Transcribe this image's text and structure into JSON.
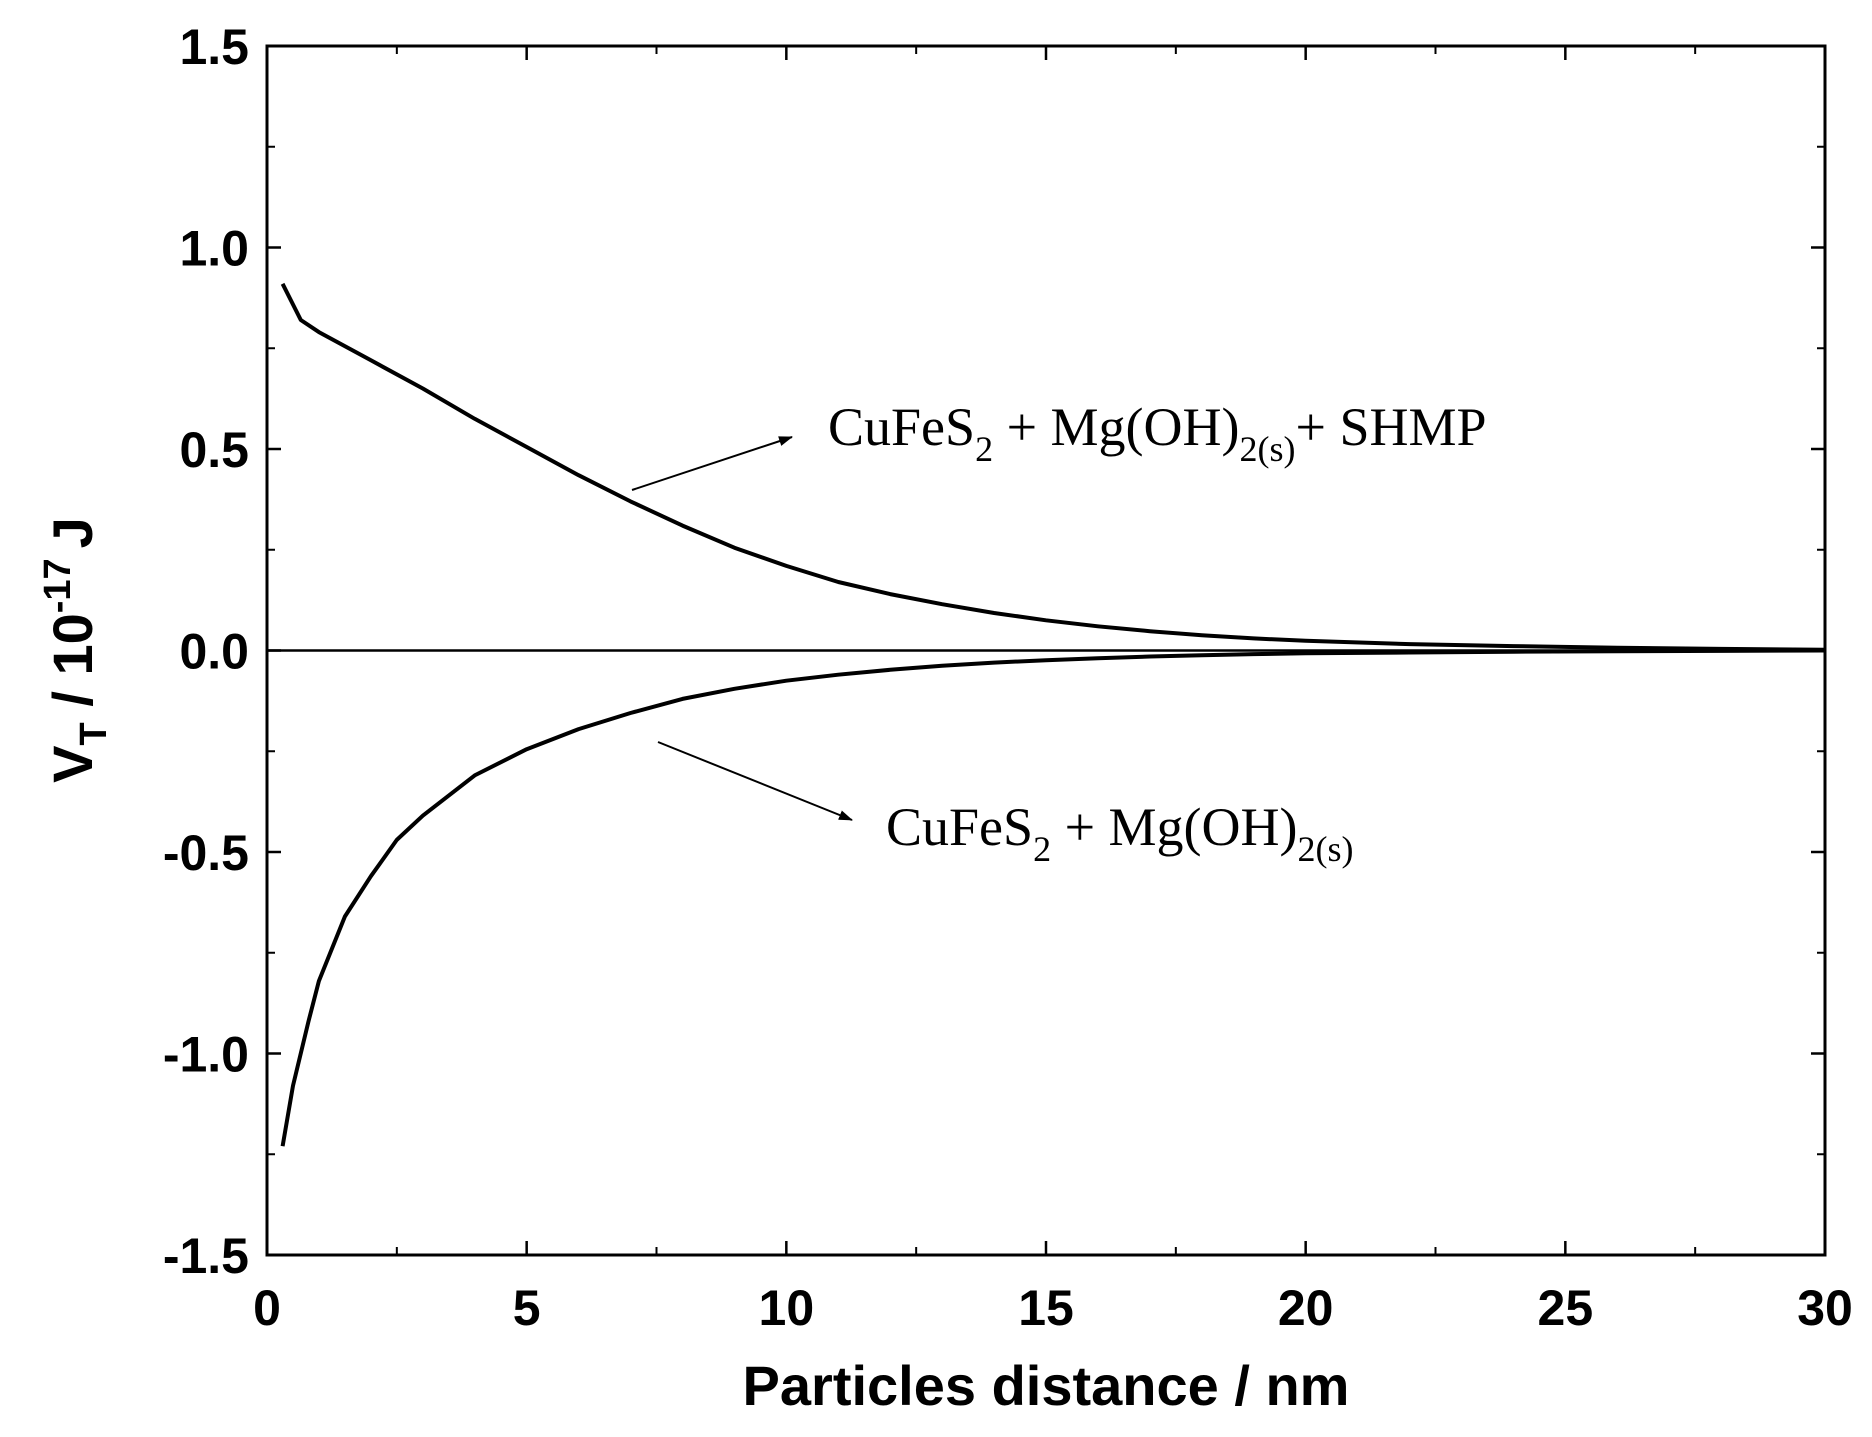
{
  "chart_data": {
    "type": "line",
    "xlabel": "Particles distance / nm",
    "ylabel": {
      "base": "V",
      "sub": "T",
      "mid": " / 10",
      "sup": "-17",
      "end": "J"
    },
    "xlim": [
      0,
      30
    ],
    "ylim": [
      -1.5,
      1.5
    ],
    "x_ticks": [
      "0",
      "5",
      "10",
      "15",
      "20",
      "25",
      "30"
    ],
    "y_ticks": [
      "-1.5",
      "-1.0",
      "-0.5",
      "0.0",
      "0.5",
      "1.0",
      "1.5"
    ],
    "grid": false,
    "zero_line": true,
    "series": [
      {
        "x": [
          0.3,
          0.65,
          1,
          2,
          3,
          4,
          5,
          6,
          7,
          8,
          9,
          10,
          11,
          12,
          13,
          14,
          15,
          16,
          17,
          18,
          19,
          20,
          22,
          24,
          26,
          28,
          30
        ],
        "y": [
          0.91,
          0.82,
          0.79,
          0.72,
          0.65,
          0.575,
          0.505,
          0.435,
          0.37,
          0.31,
          0.255,
          0.21,
          0.17,
          0.14,
          0.115,
          0.093,
          0.075,
          0.06,
          0.048,
          0.038,
          0.03,
          0.024,
          0.016,
          0.011,
          0.007,
          0.004,
          0.002
        ]
      },
      {
        "x": [
          0.3,
          0.5,
          0.8,
          1,
          1.5,
          2,
          2.5,
          3,
          4,
          5,
          6,
          7,
          8,
          9,
          10,
          11,
          12,
          13,
          14,
          15,
          16,
          17,
          18,
          19,
          20,
          22,
          24,
          26,
          28,
          30
        ],
        "y": [
          -1.23,
          -1.08,
          -0.92,
          -0.82,
          -0.66,
          -0.56,
          -0.47,
          -0.41,
          -0.31,
          -0.245,
          -0.195,
          -0.155,
          -0.12,
          -0.095,
          -0.075,
          -0.06,
          -0.048,
          -0.038,
          -0.03,
          -0.024,
          -0.019,
          -0.015,
          -0.012,
          -0.009,
          -0.007,
          -0.005,
          -0.003,
          -0.002,
          -0.001,
          0.0
        ]
      }
    ],
    "annotations": [
      {
        "parts": [
          {
            "t": "CuFeS",
            "s": ""
          },
          {
            "t": "2",
            "s": "sub"
          },
          {
            "t": " + Mg(OH)",
            "s": ""
          },
          {
            "t": "2(s)",
            "s": "sub"
          },
          {
            "t": "+ SHMP",
            "s": ""
          }
        ]
      },
      {
        "parts": [
          {
            "t": "CuFeS",
            "s": ""
          },
          {
            "t": "2",
            "s": "sub"
          },
          {
            "t": " + Mg(OH)",
            "s": ""
          },
          {
            "t": "2(s)",
            "s": "sub"
          }
        ]
      }
    ]
  }
}
